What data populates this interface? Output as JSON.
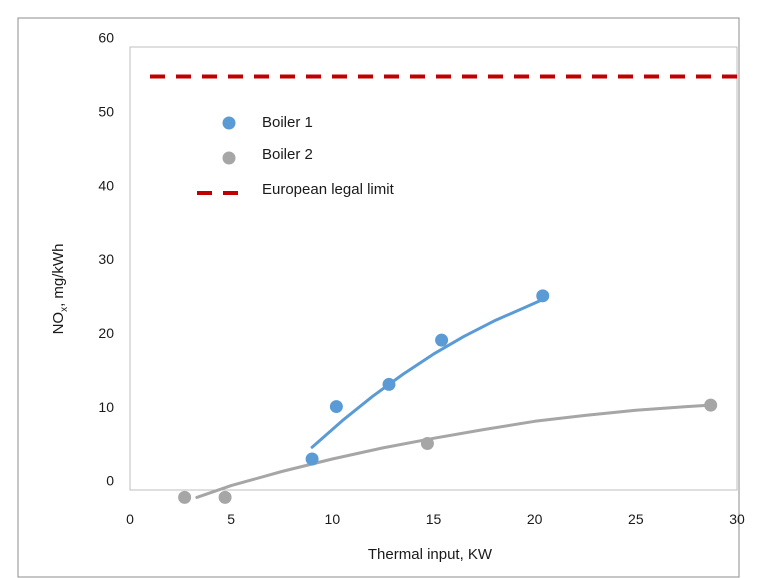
{
  "chart_data": {
    "type": "scatter",
    "xlabel": "Thermal input, KW",
    "ylabel_main": "NO",
    "ylabel_sub": "x",
    "ylabel_rest": ", mg/kWh",
    "xlim": [
      0,
      30
    ],
    "ylim": [
      0,
      60
    ],
    "x_ticks": [
      0,
      5,
      10,
      15,
      20,
      25,
      30
    ],
    "y_ticks": [
      0,
      10,
      20,
      30,
      40,
      50,
      60
    ],
    "grid": false,
    "legend_position": "upper-left",
    "series": [
      {
        "name": "Boiler 1",
        "color": "#5b9bd5",
        "points": [
          [
            9.0,
            4.2
          ],
          [
            10.2,
            11.3
          ],
          [
            12.8,
            14.3
          ],
          [
            15.4,
            20.3
          ],
          [
            20.4,
            26.3
          ]
        ],
        "trend": [
          [
            9.0,
            5.8
          ],
          [
            10.5,
            9.4
          ],
          [
            12.0,
            12.7
          ],
          [
            13.5,
            15.7
          ],
          [
            15.0,
            18.4
          ],
          [
            16.5,
            20.8
          ],
          [
            18.0,
            22.9
          ],
          [
            19.5,
            24.7
          ],
          [
            20.4,
            25.8
          ]
        ]
      },
      {
        "name": "Boiler 2",
        "color": "#a6a6a6",
        "points": [
          [
            2.7,
            -1.0
          ],
          [
            4.7,
            -1.0
          ],
          [
            14.7,
            6.3
          ],
          [
            28.7,
            11.5
          ]
        ],
        "trend": [
          [
            3.3,
            -1.0
          ],
          [
            5.0,
            0.6
          ],
          [
            7.5,
            2.5
          ],
          [
            10.0,
            4.2
          ],
          [
            12.5,
            5.7
          ],
          [
            15.0,
            7.0
          ],
          [
            17.5,
            8.2
          ],
          [
            20.0,
            9.3
          ],
          [
            22.5,
            10.1
          ],
          [
            25.0,
            10.8
          ],
          [
            27.5,
            11.3
          ],
          [
            28.7,
            11.5
          ]
        ]
      }
    ],
    "limit_line": {
      "name": "European legal limit",
      "value": 56,
      "color": "#c00000",
      "style": "dashed"
    }
  }
}
